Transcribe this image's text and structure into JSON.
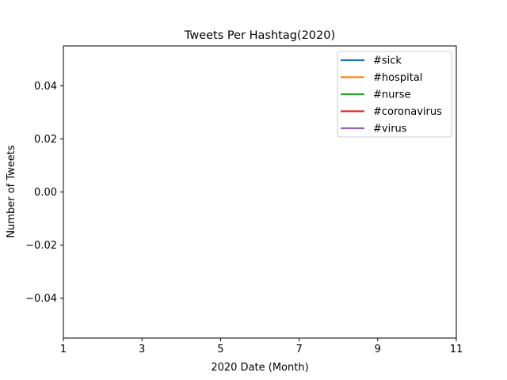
{
  "chart_data": {
    "type": "line",
    "title": "Tweets Per Hashtag(2020)",
    "xlabel": "2020 Date (Month)",
    "ylabel": "Number of Tweets",
    "xlim": [
      1,
      11
    ],
    "ylim": [
      -0.055,
      0.055
    ],
    "xticks": [
      1,
      3,
      5,
      7,
      9,
      11
    ],
    "xtick_labels": [
      "1",
      "3",
      "5",
      "7",
      "9",
      "11"
    ],
    "yticks": [
      -0.04,
      -0.02,
      0.0,
      0.02,
      0.04
    ],
    "ytick_labels": [
      "−0.04",
      "−0.02",
      "0.00",
      "0.02",
      "0.04"
    ],
    "grid": false,
    "legend_position": "top-right",
    "series": [
      {
        "name": "#sick",
        "color": "#1f77b4",
        "x": [],
        "y": []
      },
      {
        "name": "#hospital",
        "color": "#ff7f0e",
        "x": [],
        "y": []
      },
      {
        "name": "#nurse",
        "color": "#2ca02c",
        "x": [],
        "y": []
      },
      {
        "name": "#coronavirus",
        "color": "#d62728",
        "x": [],
        "y": []
      },
      {
        "name": "#virus",
        "color": "#9467bd",
        "x": [],
        "y": []
      }
    ]
  }
}
